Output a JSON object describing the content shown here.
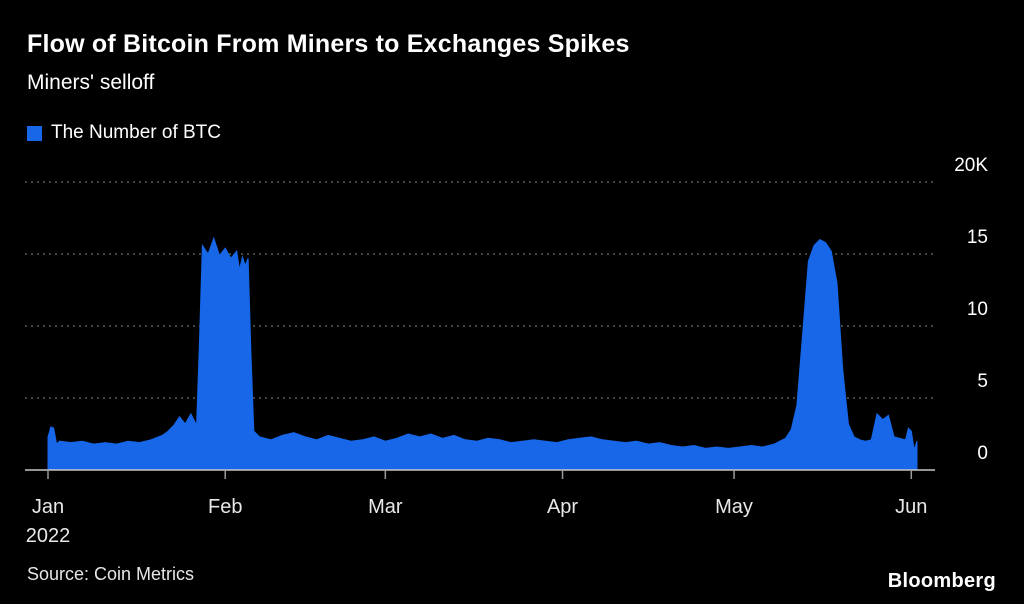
{
  "header": {
    "title": "Flow of Bitcoin From Miners to Exchanges Spikes",
    "subtitle": "Miners' selloff"
  },
  "legend": {
    "label": "The Number of BTC",
    "swatch_color": "#1767e8"
  },
  "footer": {
    "source": "Source: Coin Metrics",
    "brand": "Bloomberg"
  },
  "chart_data": {
    "type": "area",
    "title": "Flow of Bitcoin From Miners to Exchanges Spikes",
    "subtitle": "Miners' selloff",
    "series_name": "The Number of BTC",
    "unit": "thousand BTC",
    "color": "#1767e8",
    "grid": "dotted horizontal",
    "legend_position": "top-left",
    "x_axis": {
      "tick_labels": [
        "Jan",
        "Feb",
        "Mar",
        "Apr",
        "May",
        "Jun"
      ],
      "tick_days": [
        0,
        31,
        59,
        90,
        120,
        151
      ],
      "year_label": "2022",
      "xlim_days": [
        0,
        152
      ]
    },
    "y_axis": {
      "side": "right",
      "ticks": [
        0,
        5,
        10,
        15,
        20
      ],
      "tick_labels": [
        "0",
        "5",
        "10",
        "15",
        "20K"
      ],
      "ylim": [
        0,
        20
      ]
    },
    "points_day_value_kbtc": [
      [
        0,
        2.3
      ],
      [
        0.5,
        3.0
      ],
      [
        1,
        2.9
      ],
      [
        1.5,
        1.8
      ],
      [
        2,
        2.0
      ],
      [
        4,
        1.9
      ],
      [
        6,
        2.0
      ],
      [
        8,
        1.8
      ],
      [
        10,
        1.9
      ],
      [
        12,
        1.8
      ],
      [
        14,
        2.0
      ],
      [
        16,
        1.9
      ],
      [
        18,
        2.1
      ],
      [
        20,
        2.4
      ],
      [
        21,
        2.7
      ],
      [
        22,
        3.1
      ],
      [
        23,
        3.7
      ],
      [
        24,
        3.2
      ],
      [
        25,
        3.9
      ],
      [
        26,
        3.1
      ],
      [
        26.5,
        9.0
      ],
      [
        27,
        15.6
      ],
      [
        28,
        15.0
      ],
      [
        29,
        16.1
      ],
      [
        30,
        14.9
      ],
      [
        31,
        15.4
      ],
      [
        32,
        14.7
      ],
      [
        33,
        15.2
      ],
      [
        33.5,
        13.9
      ],
      [
        34,
        14.8
      ],
      [
        34.5,
        14.2
      ],
      [
        35,
        14.7
      ],
      [
        35.5,
        8.0
      ],
      [
        36,
        2.7
      ],
      [
        37,
        2.3
      ],
      [
        39,
        2.1
      ],
      [
        41,
        2.4
      ],
      [
        43,
        2.6
      ],
      [
        45,
        2.3
      ],
      [
        47,
        2.1
      ],
      [
        49,
        2.4
      ],
      [
        51,
        2.2
      ],
      [
        53,
        2.0
      ],
      [
        55,
        2.1
      ],
      [
        57,
        2.3
      ],
      [
        59,
        2.0
      ],
      [
        61,
        2.2
      ],
      [
        63,
        2.5
      ],
      [
        65,
        2.3
      ],
      [
        67,
        2.5
      ],
      [
        69,
        2.2
      ],
      [
        71,
        2.4
      ],
      [
        73,
        2.1
      ],
      [
        75,
        2.0
      ],
      [
        77,
        2.2
      ],
      [
        79,
        2.1
      ],
      [
        81,
        1.9
      ],
      [
        83,
        2.0
      ],
      [
        85,
        2.1
      ],
      [
        87,
        2.0
      ],
      [
        89,
        1.9
      ],
      [
        91,
        2.1
      ],
      [
        93,
        2.2
      ],
      [
        95,
        2.3
      ],
      [
        97,
        2.1
      ],
      [
        99,
        2.0
      ],
      [
        101,
        1.9
      ],
      [
        103,
        2.0
      ],
      [
        105,
        1.8
      ],
      [
        107,
        1.9
      ],
      [
        109,
        1.7
      ],
      [
        111,
        1.6
      ],
      [
        113,
        1.7
      ],
      [
        115,
        1.5
      ],
      [
        117,
        1.6
      ],
      [
        119,
        1.5
      ],
      [
        121,
        1.6
      ],
      [
        123,
        1.7
      ],
      [
        125,
        1.6
      ],
      [
        127,
        1.8
      ],
      [
        129,
        2.2
      ],
      [
        130,
        2.8
      ],
      [
        131,
        4.5
      ],
      [
        132,
        9.5
      ],
      [
        133,
        14.5
      ],
      [
        134,
        15.6
      ],
      [
        135,
        16.0
      ],
      [
        136,
        15.8
      ],
      [
        137,
        15.2
      ],
      [
        138,
        13.0
      ],
      [
        139,
        7.0
      ],
      [
        140,
        3.2
      ],
      [
        141,
        2.3
      ],
      [
        142,
        2.1
      ],
      [
        143,
        2.0
      ],
      [
        144,
        2.1
      ],
      [
        145,
        3.9
      ],
      [
        146,
        3.5
      ],
      [
        147,
        3.8
      ],
      [
        148,
        2.3
      ],
      [
        149,
        2.2
      ],
      [
        150,
        2.1
      ],
      [
        150.5,
        2.9
      ],
      [
        151,
        2.7
      ],
      [
        151.5,
        1.4
      ],
      [
        152,
        2.0
      ]
    ]
  }
}
